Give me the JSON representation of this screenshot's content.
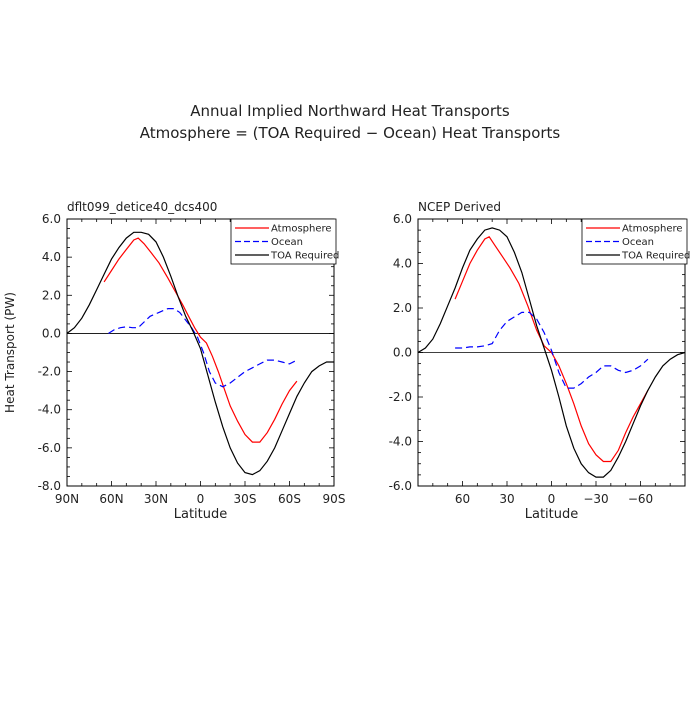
{
  "figure": {
    "title_line1": "Annual Implied Northward Heat Transports",
    "title_line2": "Atmosphere = (TOA Required − Ocean) Heat Transports"
  },
  "legend_labels": [
    "Atmosphere",
    "Ocean",
    "TOA Required"
  ],
  "chart_data": [
    {
      "type": "line",
      "title": "dflt099_detice40_dcs400",
      "xlabel": "Latitude",
      "ylabel": "Heat Transport (PW)",
      "xlim": [
        90,
        -90
      ],
      "ylim": [
        -8,
        6
      ],
      "xticks": [
        90,
        60,
        30,
        0,
        -30,
        -60,
        -90
      ],
      "xtick_labels": [
        "90N",
        "60N",
        "30N",
        "0",
        "30S",
        "60S",
        "90S"
      ],
      "yticks": [
        6,
        4,
        2,
        0,
        -2,
        -4,
        -6,
        -8
      ],
      "ytick_labels": [
        "6.0",
        "4.0",
        "2.0",
        "0.0",
        "-2.0",
        "-4.0",
        "-6.0",
        "-8.0"
      ],
      "series": [
        {
          "name": "Atmosphere",
          "color": "#ff0000",
          "dash": "none",
          "x": [
            65,
            60,
            55,
            50,
            45,
            42,
            38,
            33,
            28,
            22,
            17,
            12,
            8,
            4,
            0,
            -4,
            -8,
            -12,
            -16,
            -20,
            -25,
            -30,
            -35,
            -40,
            -45,
            -50,
            -55,
            -60,
            -65
          ],
          "y": [
            2.7,
            3.3,
            3.9,
            4.4,
            4.9,
            5.0,
            4.7,
            4.2,
            3.7,
            2.9,
            2.2,
            1.5,
            0.9,
            0.3,
            -0.2,
            -0.5,
            -1.2,
            -2.0,
            -2.9,
            -3.8,
            -4.6,
            -5.3,
            -5.7,
            -5.7,
            -5.2,
            -4.5,
            -3.7,
            -3.0,
            -2.5
          ]
        },
        {
          "name": "Ocean",
          "color": "#0000ff",
          "dash": "7,4",
          "x": [
            62,
            58,
            54,
            50,
            46,
            42,
            38,
            34,
            28,
            22,
            18,
            14,
            10,
            6,
            2,
            -2,
            -6,
            -10,
            -15,
            -20,
            -25,
            -30,
            -35,
            -40,
            -45,
            -50,
            -55,
            -60,
            -65
          ],
          "y": [
            0.0,
            0.2,
            0.3,
            0.35,
            0.3,
            0.3,
            0.6,
            0.9,
            1.1,
            1.3,
            1.3,
            1.1,
            0.7,
            0.3,
            -0.2,
            -1.0,
            -2.0,
            -2.6,
            -2.8,
            -2.6,
            -2.3,
            -2.0,
            -1.8,
            -1.6,
            -1.4,
            -1.4,
            -1.5,
            -1.6,
            -1.4
          ]
        },
        {
          "name": "TOA Required",
          "color": "#000000",
          "dash": "none",
          "x": [
            90,
            85,
            80,
            75,
            70,
            65,
            60,
            55,
            50,
            45,
            40,
            35,
            30,
            25,
            20,
            15,
            10,
            5,
            0,
            -5,
            -10,
            -15,
            -20,
            -25,
            -30,
            -35,
            -40,
            -45,
            -50,
            -55,
            -60,
            -65,
            -70,
            -75,
            -80,
            -85,
            -90
          ],
          "y": [
            0.0,
            0.3,
            0.8,
            1.5,
            2.3,
            3.1,
            3.9,
            4.5,
            5.0,
            5.3,
            5.3,
            5.2,
            4.8,
            4.0,
            3.0,
            1.9,
            0.9,
            0.1,
            -0.8,
            -2.2,
            -3.6,
            -4.9,
            -6.0,
            -6.8,
            -7.3,
            -7.4,
            -7.2,
            -6.7,
            -6.0,
            -5.1,
            -4.2,
            -3.3,
            -2.6,
            -2.0,
            -1.7,
            -1.5,
            -1.5
          ]
        }
      ]
    },
    {
      "type": "line",
      "title": "NCEP Derived",
      "xlabel": "Latitude",
      "ylabel": "",
      "xlim": [
        90,
        -90
      ],
      "ylim": [
        -6,
        6
      ],
      "xticks": [
        60,
        30,
        0,
        -30,
        -60
      ],
      "xtick_labels": [
        "60",
        "30",
        "0",
        "−30",
        "−60"
      ],
      "yticks": [
        6,
        4,
        2,
        0,
        -2,
        -4,
        -6
      ],
      "ytick_labels": [
        "6.0",
        "4.0",
        "2.0",
        "0.0",
        "-2.0",
        "-4.0",
        "-6.0"
      ],
      "series": [
        {
          "name": "Atmosphere",
          "color": "#ff0000",
          "dash": "none",
          "x": [
            65,
            60,
            55,
            50,
            45,
            42,
            38,
            33,
            28,
            22,
            16,
            10,
            5,
            0,
            -5,
            -10,
            -15,
            -20,
            -25,
            -30,
            -35,
            -40,
            -45,
            -50,
            -55,
            -60,
            -65
          ],
          "y": [
            2.4,
            3.2,
            4.0,
            4.6,
            5.1,
            5.2,
            4.8,
            4.3,
            3.8,
            3.1,
            2.1,
            1.0,
            0.3,
            0.0,
            -0.6,
            -1.4,
            -2.3,
            -3.3,
            -4.1,
            -4.6,
            -4.9,
            -4.9,
            -4.4,
            -3.6,
            -2.9,
            -2.3,
            -1.7
          ]
        },
        {
          "name": "Ocean",
          "color": "#0000ff",
          "dash": "7,4",
          "x": [
            65,
            60,
            55,
            50,
            45,
            40,
            35,
            30,
            25,
            20,
            15,
            10,
            5,
            0,
            -5,
            -10,
            -15,
            -20,
            -25,
            -30,
            -35,
            -40,
            -45,
            -50,
            -55,
            -60,
            -65
          ],
          "y": [
            0.2,
            0.2,
            0.25,
            0.25,
            0.3,
            0.4,
            1.0,
            1.4,
            1.6,
            1.8,
            1.8,
            1.5,
            0.9,
            0.1,
            -0.9,
            -1.6,
            -1.6,
            -1.4,
            -1.1,
            -0.9,
            -0.6,
            -0.6,
            -0.8,
            -0.9,
            -0.8,
            -0.6,
            -0.3
          ]
        },
        {
          "name": "TOA Required",
          "color": "#000000",
          "dash": "none",
          "x": [
            90,
            85,
            80,
            75,
            70,
            65,
            60,
            55,
            50,
            45,
            40,
            35,
            30,
            25,
            20,
            15,
            10,
            5,
            0,
            -5,
            -10,
            -15,
            -20,
            -25,
            -30,
            -35,
            -40,
            -45,
            -50,
            -55,
            -60,
            -65,
            -70,
            -75,
            -80,
            -85,
            -90
          ],
          "y": [
            0.0,
            0.2,
            0.6,
            1.3,
            2.1,
            2.9,
            3.8,
            4.6,
            5.1,
            5.5,
            5.6,
            5.5,
            5.2,
            4.5,
            3.6,
            2.4,
            1.2,
            0.2,
            -0.8,
            -2.0,
            -3.3,
            -4.3,
            -5.0,
            -5.4,
            -5.6,
            -5.6,
            -5.3,
            -4.7,
            -4.0,
            -3.2,
            -2.4,
            -1.7,
            -1.1,
            -0.6,
            -0.3,
            -0.1,
            0.0
          ]
        }
      ]
    }
  ]
}
